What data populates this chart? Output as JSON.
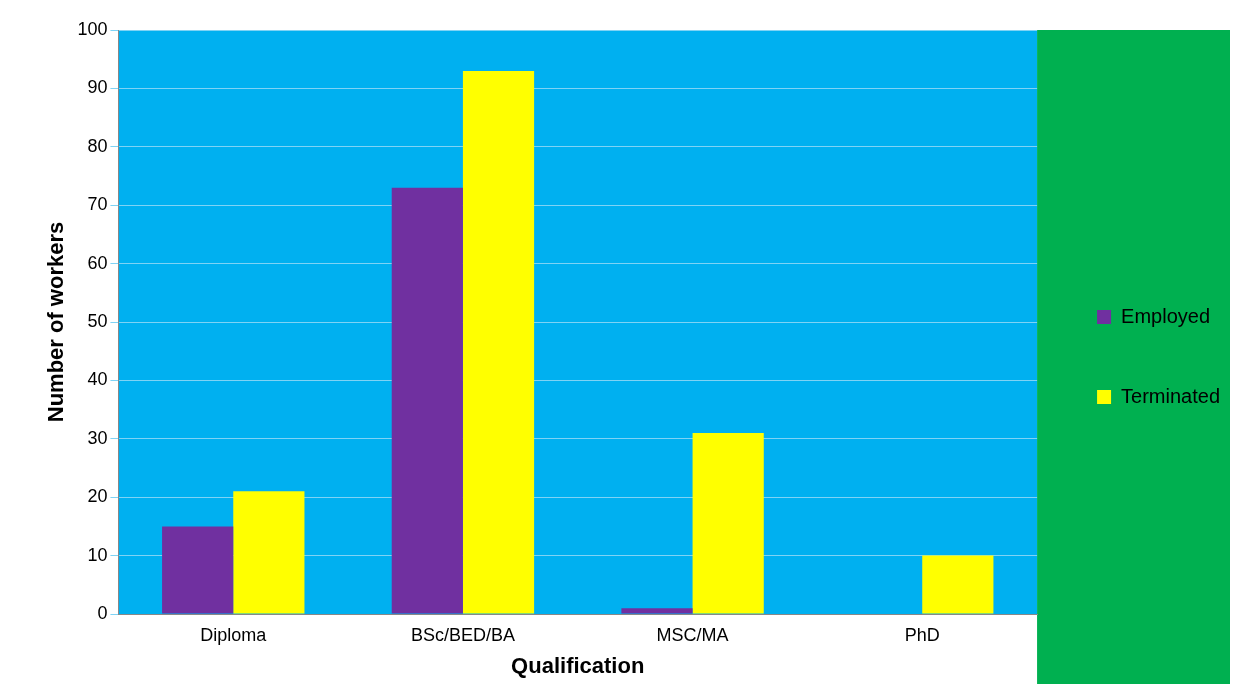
{
  "chart_data": {
    "type": "bar",
    "xlabel": "Qualification",
    "ylabel": "Number of workers",
    "categories": [
      "Diploma",
      "BSc/BED/BA",
      "MSC/MA",
      "PhD"
    ],
    "series": [
      {
        "name": "Employed",
        "color": "#7030a0",
        "values": [
          15,
          73,
          1,
          0
        ]
      },
      {
        "name": "Terminated",
        "color": "#ffff00",
        "values": [
          21,
          93,
          31,
          10
        ]
      }
    ],
    "ylim": [
      0,
      100
    ],
    "yticks": [
      0,
      10,
      20,
      30,
      40,
      50,
      60,
      70,
      80,
      90,
      100
    ],
    "grid": "y",
    "legend": "right"
  }
}
